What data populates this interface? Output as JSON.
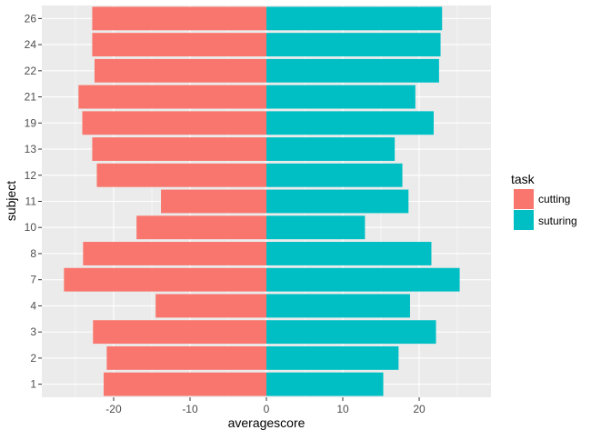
{
  "chart_data": {
    "type": "bar",
    "orientation": "horizontal",
    "categories": [
      "1",
      "2",
      "3",
      "4",
      "7",
      "8",
      "10",
      "11",
      "12",
      "13",
      "19",
      "21",
      "22",
      "24",
      "26"
    ],
    "series": [
      {
        "name": "cutting",
        "color": "#F8766D",
        "values": [
          -21.3,
          -20.9,
          -22.7,
          -14.5,
          -26.5,
          -24.0,
          -17.0,
          -13.8,
          -22.2,
          -22.8,
          -24.1,
          -24.6,
          -22.5,
          -22.8,
          -22.8
        ]
      },
      {
        "name": "suturing",
        "color": "#00BFC4",
        "values": [
          15.3,
          17.3,
          22.2,
          18.8,
          25.3,
          21.6,
          12.9,
          18.6,
          17.8,
          16.8,
          21.9,
          19.5,
          22.6,
          22.8,
          23.0
        ]
      }
    ],
    "x_ticks": [
      -20,
      -10,
      0,
      10,
      20
    ],
    "x_tick_labels": [
      "-20",
      "-10",
      "0",
      "10",
      "20"
    ],
    "xlim": [
      -29.4,
      29.4
    ],
    "xlabel": "averagescore",
    "ylabel": "subject",
    "legend_title": "task",
    "legend_position": "right",
    "grid": true,
    "panel_color": "#EBEBEB",
    "grid_color": "#FFFFFF"
  }
}
